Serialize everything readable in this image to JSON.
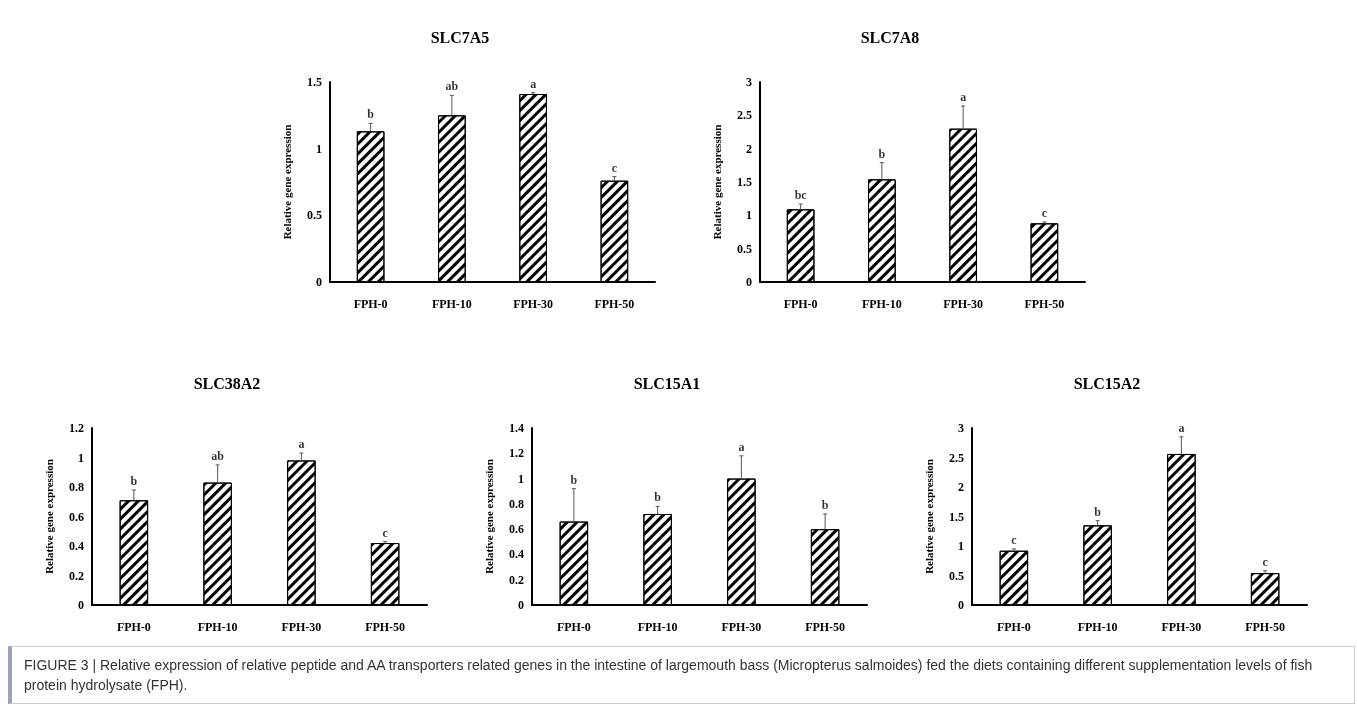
{
  "chart_data": [
    {
      "type": "bar",
      "title": "SLC7A5",
      "ylabel": "Relative gene expression",
      "categories": [
        "FPH-0",
        "FPH-10",
        "FPH-30",
        "FPH-50"
      ],
      "values": [
        1.13,
        1.25,
        1.41,
        0.76
      ],
      "color": "#000000",
      "errors": [
        [
          1.13,
          1.19
        ],
        [
          1.25,
          1.4
        ],
        [
          1.41,
          1.42
        ],
        [
          0.76,
          0.79
        ]
      ],
      "annotations": [
        {
          "text": "b",
          "x": "FPH-0",
          "y": 1.19
        },
        {
          "text": "ab",
          "x": "FPH-10",
          "y": 1.4
        },
        {
          "text": "a",
          "x": "FPH-30",
          "y": 1.42
        },
        {
          "text": "c",
          "x": "FPH-50",
          "y": 0.79
        }
      ],
      "ylim": [
        0,
        1.5
      ],
      "yticks": [
        0,
        0.5,
        1,
        1.5
      ],
      "grid": false
    },
    {
      "type": "bar",
      "title": "SLC7A8",
      "ylabel": "Relative gene expression",
      "categories": [
        "FPH-0",
        "FPH-10",
        "FPH-30",
        "FPH-50"
      ],
      "values": [
        1.09,
        1.54,
        2.3,
        0.88
      ],
      "color": "#000000",
      "errors": [
        [
          1.09,
          1.17
        ],
        [
          1.54,
          1.79
        ],
        [
          2.3,
          2.64
        ],
        [
          0.88,
          0.9
        ]
      ],
      "annotations": [
        {
          "text": "bc",
          "x": "FPH-0",
          "y": 1.17
        },
        {
          "text": "b",
          "x": "FPH-10",
          "y": 1.79
        },
        {
          "text": "a",
          "x": "FPH-30",
          "y": 2.64
        },
        {
          "text": "c",
          "x": "FPH-50",
          "y": 0.9
        }
      ],
      "ylim": [
        0,
        3
      ],
      "yticks": [
        0,
        0.5,
        1,
        1.5,
        2,
        2.5,
        3
      ],
      "grid": false
    },
    {
      "type": "bar",
      "title": "SLC38A2",
      "ylabel": "Relative gene expression",
      "categories": [
        "FPH-0",
        "FPH-10",
        "FPH-30",
        "FPH-50"
      ],
      "values": [
        0.71,
        0.83,
        0.98,
        0.42
      ],
      "color": "#000000",
      "errors": [
        [
          0.71,
          0.78
        ],
        [
          0.83,
          0.95
        ],
        [
          0.98,
          1.03
        ],
        [
          0.42,
          0.43
        ]
      ],
      "annotations": [
        {
          "text": "b",
          "x": "FPH-0",
          "y": 0.78
        },
        {
          "text": "ab",
          "x": "FPH-10",
          "y": 0.95
        },
        {
          "text": "a",
          "x": "FPH-30",
          "y": 1.03
        },
        {
          "text": "c",
          "x": "FPH-50",
          "y": 0.43
        }
      ],
      "ylim": [
        0,
        1.2
      ],
      "yticks": [
        0,
        0.2,
        0.4,
        0.6,
        0.8,
        1,
        1.2
      ],
      "grid": false
    },
    {
      "type": "bar",
      "title": "SLC15A1",
      "ylabel": "Relative gene expression",
      "categories": [
        "FPH-0",
        "FPH-10",
        "FPH-30",
        "FPH-50"
      ],
      "values": [
        0.66,
        0.72,
        1.0,
        0.6
      ],
      "color": "#000000",
      "errors": [
        [
          0.66,
          0.92
        ],
        [
          0.72,
          0.78
        ],
        [
          1.0,
          1.18
        ],
        [
          0.6,
          0.72
        ]
      ],
      "annotations": [
        {
          "text": "b",
          "x": "FPH-0",
          "y": 0.92
        },
        {
          "text": "b",
          "x": "FPH-10",
          "y": 0.78
        },
        {
          "text": "a",
          "x": "FPH-30",
          "y": 1.18
        },
        {
          "text": "b",
          "x": "FPH-50",
          "y": 0.72
        }
      ],
      "ylim": [
        0,
        1.4
      ],
      "yticks": [
        0,
        0.2,
        0.4,
        0.6,
        0.8,
        1,
        1.2,
        1.4
      ],
      "grid": false
    },
    {
      "type": "bar",
      "title": "SLC15A2",
      "ylabel": "Relative gene expression",
      "categories": [
        "FPH-0",
        "FPH-10",
        "FPH-30",
        "FPH-50"
      ],
      "values": [
        0.92,
        1.35,
        2.56,
        0.54
      ],
      "color": "#000000",
      "errors": [
        [
          0.92,
          0.95
        ],
        [
          1.35,
          1.43
        ],
        [
          2.56,
          2.85
        ],
        [
          0.54,
          0.58
        ]
      ],
      "annotations": [
        {
          "text": "c",
          "x": "FPH-0",
          "y": 0.95
        },
        {
          "text": "b",
          "x": "FPH-10",
          "y": 1.43
        },
        {
          "text": "a",
          "x": "FPH-30",
          "y": 2.85
        },
        {
          "text": "c",
          "x": "FPH-50",
          "y": 0.58
        },
        "FIGURE 3 | Relative expression of relative peptide and AA transporters related genes in the intestine of largemouth bass (Micropterus salmoides) fed the diets containing different supplementation levels of fish protein hydrolysate (FPH)."
      ],
      "ylim": [
        0,
        3
      ],
      "yticks": [
        0,
        0.5,
        1,
        1.5,
        2,
        2.5,
        3
      ],
      "grid": false
    }
  ]
}
